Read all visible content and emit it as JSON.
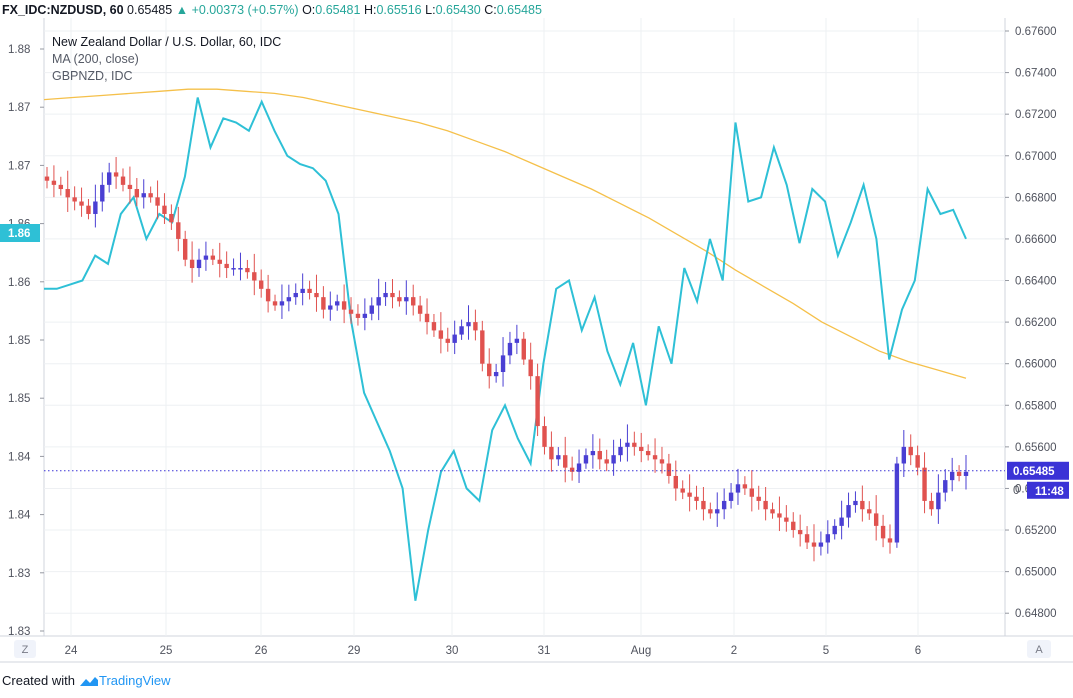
{
  "header": {
    "symbol": "FX_IDC:NZDUSD, 60",
    "last": "0.65485",
    "change": "+0.00373 (+0.57%)",
    "o_label": "O:",
    "o": "0.65481",
    "h_label": "H:",
    "h": "0.65516",
    "l_label": "L:",
    "l": "0.65430",
    "c_label": "C:",
    "c": "0.65485"
  },
  "legend": {
    "title": "New Zealand Dollar / U.S. Dollar, 60, IDC",
    "ma": "MA (200, close)",
    "compare": "GBPNZD, IDC"
  },
  "footer": {
    "created_with": "Created with",
    "brand": "TradingView"
  },
  "colors": {
    "up": "#4a3fd3",
    "down": "#e0524f",
    "ma": "#f5c04a",
    "compare": "#2ec0d6",
    "grid": "#eef0f3",
    "price_line": "#3b33d6"
  },
  "chart_data": {
    "type": "candlestick",
    "right_axis": {
      "range": [
        0.647,
        0.676
      ],
      "ticks": [
        "0.67600",
        "0.67400",
        "0.67200",
        "0.67000",
        "0.66800",
        "0.66600",
        "0.66400",
        "0.66200",
        "0.66000",
        "0.65800",
        "0.65600",
        "0.65400",
        "0.65200",
        "0.65000",
        "0.64800"
      ]
    },
    "left_axis": {
      "ticks": [
        "1.88",
        "1.87",
        "1.87",
        "1.86",
        "1.86",
        "1.85",
        "1.85",
        "1.84",
        "1.84",
        "1.83",
        "1.83"
      ],
      "highlight": "1.86"
    },
    "x_ticks": [
      "24",
      "25",
      "26",
      "29",
      "30",
      "31",
      "Aug",
      "2",
      "5",
      "6"
    ],
    "current_price": "0.65485",
    "countdown": "11:48",
    "axis_hidden_label": "0",
    "corner_left": "Z",
    "corner_right": "A",
    "nzdusd_close": [
      0.6688,
      0.6686,
      0.6684,
      0.668,
      0.6678,
      0.6676,
      0.6672,
      0.6678,
      0.6686,
      0.6692,
      0.669,
      0.6686,
      0.6684,
      0.668,
      0.6682,
      0.668,
      0.6676,
      0.6672,
      0.6668,
      0.666,
      0.665,
      0.6646,
      0.665,
      0.6652,
      0.665,
      0.6648,
      0.6646,
      0.6646,
      0.6646,
      0.6644,
      0.664,
      0.6636,
      0.663,
      0.6628,
      0.663,
      0.6632,
      0.6634,
      0.6636,
      0.6634,
      0.6632,
      0.6626,
      0.6628,
      0.663,
      0.6626,
      0.6624,
      0.6622,
      0.6624,
      0.6628,
      0.6632,
      0.6634,
      0.6632,
      0.663,
      0.6632,
      0.6628,
      0.6624,
      0.662,
      0.6616,
      0.6612,
      0.661,
      0.6614,
      0.6618,
      0.662,
      0.6616,
      0.66,
      0.6594,
      0.6596,
      0.6604,
      0.661,
      0.6612,
      0.6602,
      0.6594,
      0.657,
      0.656,
      0.6554,
      0.6556,
      0.655,
      0.6548,
      0.6552,
      0.6556,
      0.6558,
      0.6554,
      0.6552,
      0.6556,
      0.656,
      0.6562,
      0.656,
      0.6558,
      0.6556,
      0.6554,
      0.6552,
      0.6546,
      0.654,
      0.6538,
      0.6536,
      0.6534,
      0.653,
      0.6528,
      0.653,
      0.6534,
      0.6538,
      0.6542,
      0.654,
      0.6536,
      0.6534,
      0.653,
      0.6528,
      0.6526,
      0.6524,
      0.652,
      0.6518,
      0.6514,
      0.6512,
      0.6514,
      0.6518,
      0.6522,
      0.6526,
      0.6532,
      0.6534,
      0.653,
      0.6528,
      0.6522,
      0.6516,
      0.6514,
      0.6552,
      0.656,
      0.6556,
      0.655,
      0.6534,
      0.653,
      0.6538,
      0.6544,
      0.6548,
      0.6546,
      0.6548
    ],
    "ma200": [
      0.6727,
      0.6728,
      0.6729,
      0.673,
      0.6731,
      0.6732,
      0.6732,
      0.6731,
      0.673,
      0.6728,
      0.6725,
      0.6722,
      0.6719,
      0.6716,
      0.6712,
      0.6707,
      0.6702,
      0.6696,
      0.669,
      0.6684,
      0.6677,
      0.667,
      0.6662,
      0.6654,
      0.6645,
      0.6637,
      0.6629,
      0.662,
      0.6613,
      0.6606,
      0.6601,
      0.6597,
      0.6593
    ],
    "gbpnzd_relative": [
      0.6636,
      0.6636,
      0.6638,
      0.664,
      0.6652,
      0.6648,
      0.6672,
      0.668,
      0.666,
      0.6672,
      0.6668,
      0.669,
      0.6728,
      0.6704,
      0.6718,
      0.6716,
      0.6712,
      0.6726,
      0.6712,
      0.67,
      0.6696,
      0.6694,
      0.6688,
      0.6672,
      0.662,
      0.6586,
      0.6572,
      0.6558,
      0.654,
      0.6486,
      0.652,
      0.6548,
      0.6558,
      0.654,
      0.6534,
      0.6568,
      0.658,
      0.6564,
      0.6552,
      0.66,
      0.6636,
      0.664,
      0.6616,
      0.6632,
      0.6606,
      0.659,
      0.661,
      0.658,
      0.6618,
      0.66,
      0.6646,
      0.663,
      0.666,
      0.664,
      0.6716,
      0.6678,
      0.668,
      0.6704,
      0.6686,
      0.6658,
      0.6684,
      0.6678,
      0.6652,
      0.6668,
      0.6686,
      0.666,
      0.6602,
      0.6626,
      0.664,
      0.6684,
      0.6672,
      0.6674,
      0.666
    ]
  }
}
